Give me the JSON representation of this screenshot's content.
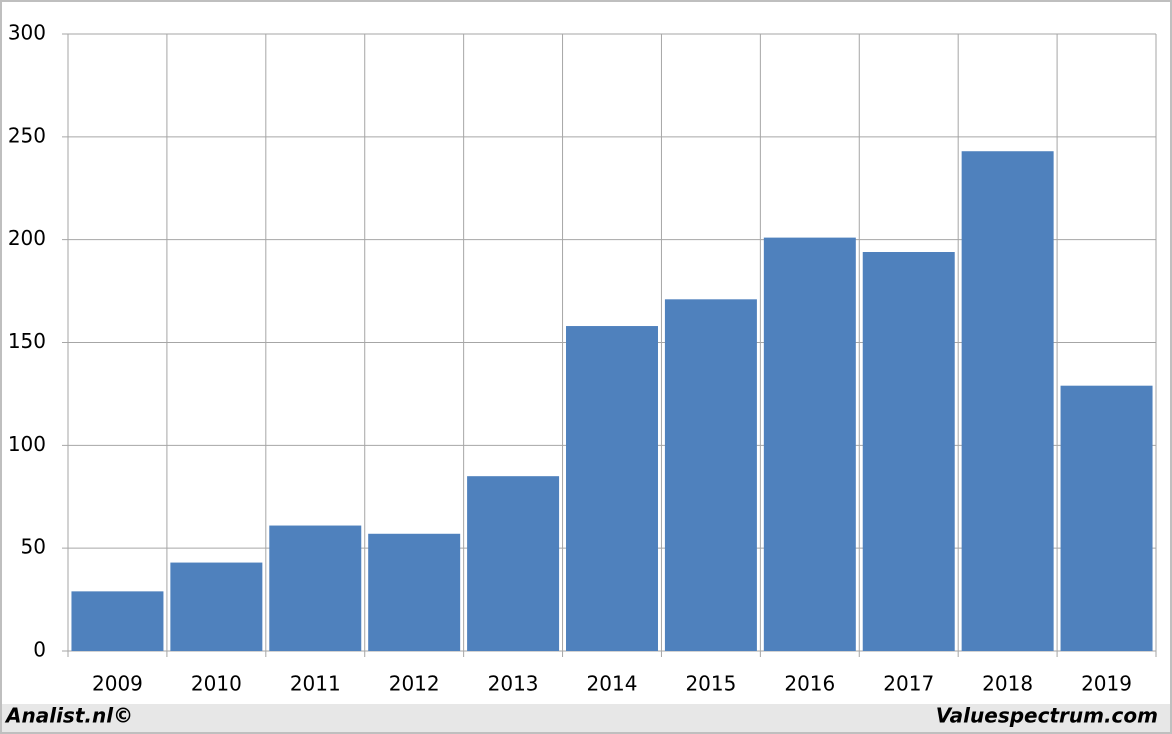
{
  "chart_data": {
    "type": "bar",
    "categories": [
      "2009",
      "2010",
      "2011",
      "2012",
      "2013",
      "2014",
      "2015",
      "2016",
      "2017",
      "2018",
      "2019"
    ],
    "values": [
      29,
      43,
      61,
      57,
      85,
      158,
      171,
      201,
      194,
      243,
      129
    ],
    "color": "#4f81bd",
    "ylim": [
      0,
      300
    ],
    "yticks": [
      0,
      50,
      100,
      150,
      200,
      250,
      300
    ],
    "grid": true,
    "source_left": "Analist.nl©",
    "source_right": "Valuespectrum.com"
  }
}
